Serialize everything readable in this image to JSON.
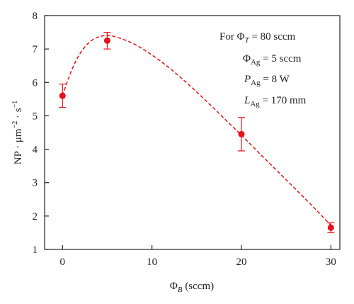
{
  "chart_data": {
    "type": "scatter",
    "xlabel": "Φ",
    "xlabel_sub": "B",
    "xlabel_units": " (sccm)",
    "ylabel": "NP · μm",
    "ylabel_sup1": "−2",
    "ylabel_mid": " · s",
    "ylabel_sup2": "−1",
    "xlim": [
      -2,
      31
    ],
    "ylim": [
      1,
      8
    ],
    "xticks": [
      0,
      10,
      20,
      30
    ],
    "yticks": [
      1,
      2,
      3,
      4,
      5,
      6,
      7,
      8
    ],
    "grid": false,
    "colors": {
      "points": "#e8101a",
      "curve": "#e8101a",
      "axes": "#222222"
    },
    "series": [
      {
        "points": [
          {
            "x": 0,
            "y": 5.6,
            "err_low": 5.25,
            "err_high": 5.95
          },
          {
            "x": 5,
            "y": 7.25,
            "err_low": 7.0,
            "err_high": 7.5
          },
          {
            "x": 20,
            "y": 4.45,
            "err_low": 3.95,
            "err_high": 4.95
          },
          {
            "x": 30,
            "y": 1.65,
            "err_low": 1.5,
            "err_high": 1.8
          }
        ]
      }
    ],
    "fit_curve": {
      "style": "dashed",
      "points": [
        [
          0,
          5.6
        ],
        [
          1,
          6.35
        ],
        [
          2,
          6.88
        ],
        [
          3,
          7.2
        ],
        [
          4,
          7.36
        ],
        [
          5,
          7.4
        ],
        [
          6,
          7.36
        ],
        [
          8,
          7.15
        ],
        [
          10,
          6.82
        ],
        [
          12,
          6.42
        ],
        [
          14,
          5.96
        ],
        [
          16,
          5.46
        ],
        [
          18,
          4.94
        ],
        [
          20,
          4.42
        ],
        [
          22,
          3.88
        ],
        [
          24,
          3.35
        ],
        [
          26,
          2.82
        ],
        [
          28,
          2.28
        ],
        [
          30,
          1.72
        ]
      ]
    },
    "annotations": {
      "line1": {
        "pre": "For Φ",
        "sub": "T",
        "post": " = 80 sccm"
      },
      "line2": {
        "pre": "Φ",
        "sub": "Ag",
        "post": " = 5 sccm"
      },
      "line3": {
        "pre": "P",
        "sub": "Ag",
        "post": " = 8 W"
      },
      "line4": {
        "pre": "L",
        "sub": "Ag",
        "post": " = 170 mm"
      }
    }
  }
}
